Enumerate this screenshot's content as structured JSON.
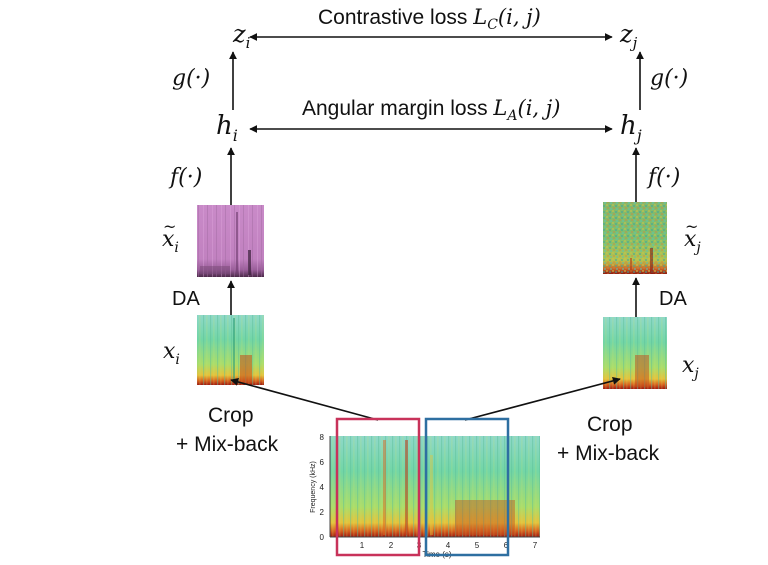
{
  "losses": {
    "contrastive": {
      "text": "Contrastive loss ",
      "symbol": "L",
      "sub": "C",
      "args": "(i, j)"
    },
    "angular": {
      "text": "Angular margin loss ",
      "symbol": "L",
      "sub": "A",
      "args": "(i, j)"
    }
  },
  "left": {
    "z": {
      "base": "z",
      "sub": "i"
    },
    "g": "g(·)",
    "h": {
      "base": "h",
      "sub": "i"
    },
    "f": "f(·)",
    "x_tilde": {
      "base": "x",
      "sub": "i"
    },
    "da": "DA",
    "x": {
      "base": "x",
      "sub": "i"
    },
    "crop_line1": "Crop",
    "crop_line2": "+ Mix-back"
  },
  "right": {
    "z": {
      "base": "z",
      "sub": "j"
    },
    "g": "g(·)",
    "h": {
      "base": "h",
      "sub": "j"
    },
    "f": "f(·)",
    "x_tilde": {
      "base": "x",
      "sub": "j"
    },
    "da": "DA",
    "x": {
      "base": "x",
      "sub": "j"
    },
    "crop_line1": "Crop",
    "crop_line2": "+ Mix-back"
  },
  "spectrogram": {
    "ylabel": "Frequency (kHz)",
    "xlabel": "Time (s)",
    "yticks": [
      "0",
      "2",
      "4",
      "6",
      "8"
    ],
    "xticks": [
      "1",
      "2",
      "3",
      "4",
      "5",
      "6",
      "7"
    ]
  },
  "colors": {
    "left_crop_box": "#c8325a",
    "right_crop_box": "#2e6fa1",
    "arrow": "#111111",
    "augmented_left_tint": "#c98ac8",
    "spectrogram_base": "#5fd0a0"
  }
}
